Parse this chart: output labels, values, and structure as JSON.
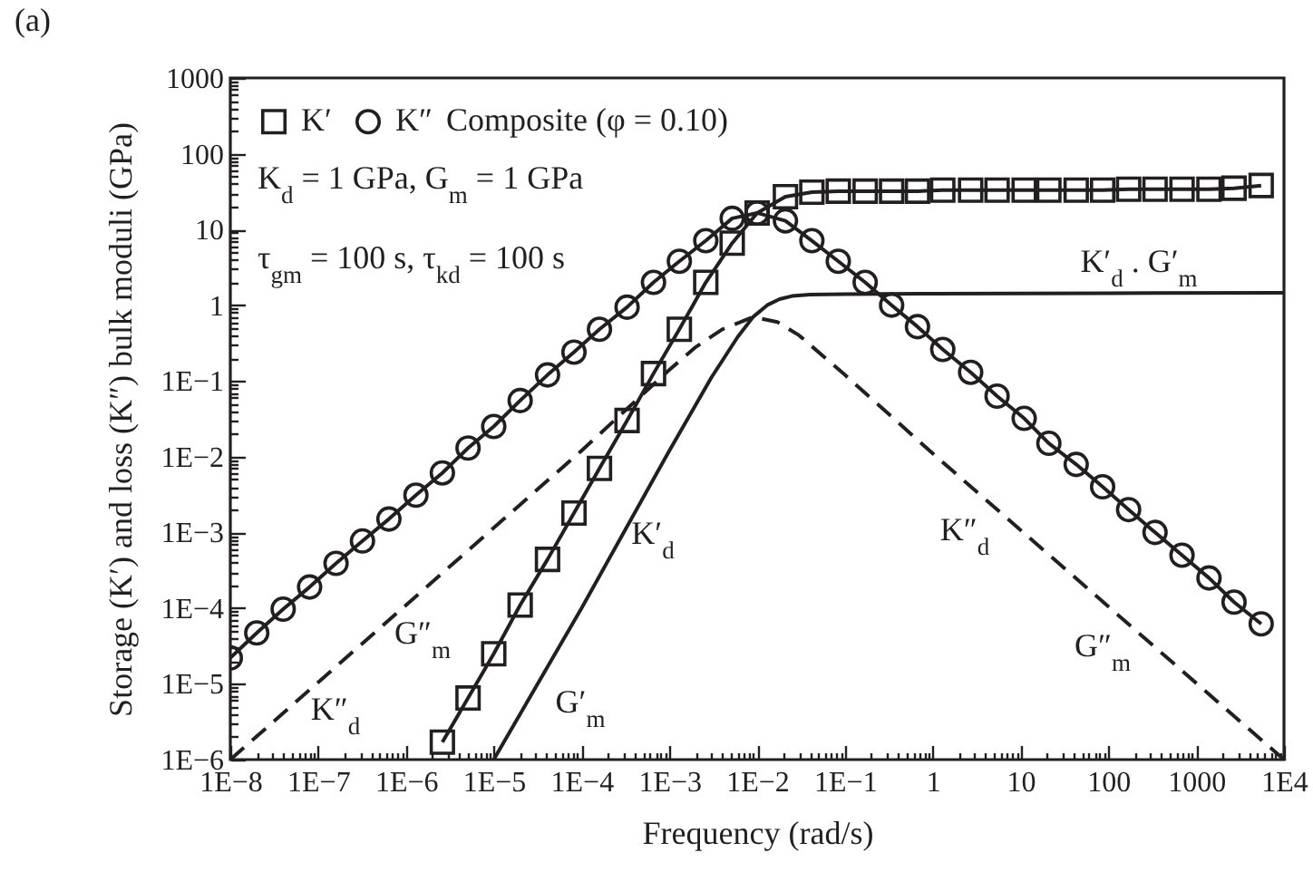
{
  "chart_data": {
    "type": "line",
    "title": "(a)",
    "xlabel": "Frequency (rad/s)",
    "ylabel": "Storage (K′) and loss (K″) bulk moduli (GPa)",
    "legend_title": "Composite (φ = 0.10)",
    "legend": "top left",
    "log": "xy",
    "xlim": [
      1e-08,
      10000
    ],
    "ylim": [
      1e-06,
      1000
    ],
    "xticks": [
      {
        "value": 1e-08,
        "label": "1E−8"
      },
      {
        "value": 2e-08,
        "label": null
      },
      {
        "value": 3e-08,
        "label": null
      },
      {
        "value": 4e-08,
        "label": null
      },
      {
        "value": 5e-08,
        "label": null
      },
      {
        "value": 6e-08,
        "label": null
      },
      {
        "value": 7e-08,
        "label": null
      },
      {
        "value": 8e-08,
        "label": null
      },
      {
        "value": 9e-08,
        "label": null
      },
      {
        "value": 1e-07,
        "label": "1E−7"
      },
      {
        "value": 2e-07,
        "label": null
      },
      {
        "value": 3e-07,
        "label": null
      },
      {
        "value": 4e-07,
        "label": null
      },
      {
        "value": 5e-07,
        "label": null
      },
      {
        "value": 6e-07,
        "label": null
      },
      {
        "value": 7e-07,
        "label": null
      },
      {
        "value": 8e-07,
        "label": null
      },
      {
        "value": 9e-07,
        "label": null
      },
      {
        "value": 1e-06,
        "label": "1E−6"
      },
      {
        "value": 2e-06,
        "label": null
      },
      {
        "value": 3e-06,
        "label": null
      },
      {
        "value": 4e-06,
        "label": null
      },
      {
        "value": 5e-06,
        "label": null
      },
      {
        "value": 6e-06,
        "label": null
      },
      {
        "value": 7e-06,
        "label": null
      },
      {
        "value": 8e-06,
        "label": null
      },
      {
        "value": 9e-06,
        "label": null
      },
      {
        "value": 1e-05,
        "label": "1E−5"
      },
      {
        "value": 2e-05,
        "label": null
      },
      {
        "value": 3e-05,
        "label": null
      },
      {
        "value": 4e-05,
        "label": null
      },
      {
        "value": 5e-05,
        "label": null
      },
      {
        "value": 6e-05,
        "label": null
      },
      {
        "value": 7e-05,
        "label": null
      },
      {
        "value": 8e-05,
        "label": null
      },
      {
        "value": 9e-05,
        "label": null
      },
      {
        "value": 0.0001,
        "label": "1E−4"
      },
      {
        "value": 0.0002,
        "label": null
      },
      {
        "value": 0.0003,
        "label": null
      },
      {
        "value": 0.0004,
        "label": null
      },
      {
        "value": 0.0005,
        "label": null
      },
      {
        "value": 0.0006,
        "label": null
      },
      {
        "value": 0.0007,
        "label": null
      },
      {
        "value": 0.0008,
        "label": null
      },
      {
        "value": 0.0009,
        "label": null
      },
      {
        "value": 0.001,
        "label": "1E−3"
      },
      {
        "value": 0.002,
        "label": null
      },
      {
        "value": 0.003,
        "label": null
      },
      {
        "value": 0.004,
        "label": null
      },
      {
        "value": 0.005,
        "label": null
      },
      {
        "value": 0.006,
        "label": null
      },
      {
        "value": 0.007,
        "label": null
      },
      {
        "value": 0.008,
        "label": null
      },
      {
        "value": 0.009,
        "label": null
      },
      {
        "value": 0.01,
        "label": "1E−2"
      },
      {
        "value": 0.02,
        "label": null
      },
      {
        "value": 0.03,
        "label": null
      },
      {
        "value": 0.04,
        "label": null
      },
      {
        "value": 0.05,
        "label": null
      },
      {
        "value": 0.06,
        "label": null
      },
      {
        "value": 0.07,
        "label": null
      },
      {
        "value": 0.08,
        "label": null
      },
      {
        "value": 0.09,
        "label": null
      },
      {
        "value": 0.1,
        "label": "1E−1"
      },
      {
        "value": 0.2,
        "label": null
      },
      {
        "value": 0.3,
        "label": null
      },
      {
        "value": 0.4,
        "label": null
      },
      {
        "value": 0.5,
        "label": null
      },
      {
        "value": 0.6,
        "label": null
      },
      {
        "value": 0.7,
        "label": null
      },
      {
        "value": 0.8,
        "label": null
      },
      {
        "value": 0.9,
        "label": null
      },
      1,
      {
        "value": 2,
        "label": null
      },
      {
        "value": 3,
        "label": null
      },
      {
        "value": 4,
        "label": null
      },
      {
        "value": 5,
        "label": null
      },
      {
        "value": 6,
        "label": null
      },
      {
        "value": 7,
        "label": null
      },
      {
        "value": 8,
        "label": null
      },
      {
        "value": 9,
        "label": null
      },
      10,
      {
        "value": 20,
        "label": null
      },
      {
        "value": 30,
        "label": null
      },
      {
        "value": 40,
        "label": null
      },
      {
        "value": 50,
        "label": null
      },
      {
        "value": 60,
        "label": null
      },
      {
        "value": 70,
        "label": null
      },
      {
        "value": 80,
        "label": null
      },
      {
        "value": 90,
        "label": null
      },
      100,
      {
        "value": 200,
        "label": null
      },
      {
        "value": 300,
        "label": null
      },
      {
        "value": 400,
        "label": null
      },
      {
        "value": 500,
        "label": null
      },
      {
        "value": 600,
        "label": null
      },
      {
        "value": 700,
        "label": null
      },
      {
        "value": 800,
        "label": null
      },
      {
        "value": 900,
        "label": null
      },
      1000,
      {
        "value": 2000,
        "label": null
      },
      {
        "value": 3000,
        "label": null
      },
      {
        "value": 4000,
        "label": null
      },
      {
        "value": 5000,
        "label": null
      },
      {
        "value": 6000,
        "label": null
      },
      {
        "value": 7000,
        "label": null
      },
      {
        "value": 8000,
        "label": null
      },
      {
        "value": 9000,
        "label": null
      },
      {
        "value": 10000,
        "label": "1E4"
      }
    ],
    "yticks": [
      {
        "value": 1e-06,
        "label": "1E−6"
      },
      {
        "value": 2e-06,
        "label": null
      },
      {
        "value": 3e-06,
        "label": null
      },
      {
        "value": 4e-06,
        "label": null
      },
      {
        "value": 5e-06,
        "label": null
      },
      {
        "value": 6e-06,
        "label": null
      },
      {
        "value": 7e-06,
        "label": null
      },
      {
        "value": 8e-06,
        "label": null
      },
      {
        "value": 9e-06,
        "label": null
      },
      {
        "value": 1e-05,
        "label": "1E−5"
      },
      {
        "value": 2e-05,
        "label": null
      },
      {
        "value": 3e-05,
        "label": null
      },
      {
        "value": 4e-05,
        "label": null
      },
      {
        "value": 5e-05,
        "label": null
      },
      {
        "value": 6e-05,
        "label": null
      },
      {
        "value": 7e-05,
        "label": null
      },
      {
        "value": 8e-05,
        "label": null
      },
      {
        "value": 9e-05,
        "label": null
      },
      {
        "value": 0.0001,
        "label": "1E−4"
      },
      {
        "value": 0.0002,
        "label": null
      },
      {
        "value": 0.0003,
        "label": null
      },
      {
        "value": 0.0004,
        "label": null
      },
      {
        "value": 0.0005,
        "label": null
      },
      {
        "value": 0.0006,
        "label": null
      },
      {
        "value": 0.0007,
        "label": null
      },
      {
        "value": 0.0008,
        "label": null
      },
      {
        "value": 0.0009,
        "label": null
      },
      {
        "value": 0.001,
        "label": "1E−3"
      },
      {
        "value": 0.002,
        "label": null
      },
      {
        "value": 0.003,
        "label": null
      },
      {
        "value": 0.004,
        "label": null
      },
      {
        "value": 0.005,
        "label": null
      },
      {
        "value": 0.006,
        "label": null
      },
      {
        "value": 0.007,
        "label": null
      },
      {
        "value": 0.008,
        "label": null
      },
      {
        "value": 0.009,
        "label": null
      },
      {
        "value": 0.01,
        "label": "1E−2"
      },
      {
        "value": 0.02,
        "label": null
      },
      {
        "value": 0.03,
        "label": null
      },
      {
        "value": 0.04,
        "label": null
      },
      {
        "value": 0.05,
        "label": null
      },
      {
        "value": 0.06,
        "label": null
      },
      {
        "value": 0.07,
        "label": null
      },
      {
        "value": 0.08,
        "label": null
      },
      {
        "value": 0.09,
        "label": null
      },
      {
        "value": 0.1,
        "label": "1E−1"
      },
      {
        "value": 0.2,
        "label": null
      },
      {
        "value": 0.3,
        "label": null
      },
      {
        "value": 0.4,
        "label": null
      },
      {
        "value": 0.5,
        "label": null
      },
      {
        "value": 0.6,
        "label": null
      },
      {
        "value": 0.7,
        "label": null
      },
      {
        "value": 0.8,
        "label": null
      },
      {
        "value": 0.9,
        "label": null
      },
      1,
      {
        "value": 2,
        "label": null
      },
      {
        "value": 3,
        "label": null
      },
      {
        "value": 4,
        "label": null
      },
      {
        "value": 5,
        "label": null
      },
      {
        "value": 6,
        "label": null
      },
      {
        "value": 7,
        "label": null
      },
      {
        "value": 8,
        "label": null
      },
      {
        "value": 9,
        "label": null
      },
      10,
      {
        "value": 20,
        "label": null
      },
      {
        "value": 30,
        "label": null
      },
      {
        "value": 40,
        "label": null
      },
      {
        "value": 50,
        "label": null
      },
      {
        "value": 60,
        "label": null
      },
      {
        "value": 70,
        "label": null
      },
      {
        "value": 80,
        "label": null
      },
      {
        "value": 90,
        "label": null
      },
      100,
      {
        "value": 200,
        "label": null
      },
      {
        "value": 300,
        "label": null
      },
      {
        "value": 400,
        "label": null
      },
      {
        "value": 500,
        "label": null
      },
      {
        "value": 600,
        "label": null
      },
      {
        "value": 700,
        "label": null
      },
      {
        "value": 800,
        "label": null
      },
      {
        "value": 900,
        "label": null
      },
      1000
    ],
    "series": [
      {
        "name": "K′",
        "marker": "square",
        "line_style": "solid",
        "color": "#231f20",
        "x": [
          2.6e-06,
          5.1e-06,
          1e-05,
          2e-05,
          4.1e-05,
          8.2e-05,
          0.00016,
          0.00033,
          0.00066,
          0.0013,
          0.0026,
          0.0052,
          0.01,
          0.021,
          0.042,
          0.084,
          0.17,
          0.34,
          0.67,
          1.3,
          2.7,
          5.4,
          11,
          21,
          43,
          86,
          170,
          340,
          690,
          1400,
          2700,
          5500
        ],
        "values": [
          1.7e-06,
          6.5e-06,
          2.5e-05,
          0.00011,
          0.00044,
          0.0018,
          0.007,
          0.03,
          0.125,
          0.48,
          2,
          6.6,
          16.5,
          27,
          31,
          32,
          32,
          32,
          32,
          33,
          33,
          33,
          33,
          33,
          33,
          33,
          34,
          34,
          34,
          34,
          35,
          38
        ]
      },
      {
        "name": "K″",
        "marker": "circle",
        "line_style": "solid",
        "color": "#231f20",
        "x": [
          1e-08,
          2e-08,
          4e-08,
          8e-08,
          1.6e-07,
          3.2e-07,
          6.4e-07,
          1.3e-06,
          2.6e-06,
          5.1e-06,
          1e-05,
          2e-05,
          4.1e-05,
          8.2e-05,
          0.00016,
          0.00033,
          0.00066,
          0.0013,
          0.0026,
          0.0052,
          0.01,
          0.021,
          0.042,
          0.084,
          0.17,
          0.34,
          0.67,
          1.3,
          2.7,
          5.4,
          11,
          21,
          43,
          86,
          170,
          340,
          690,
          1400,
          2700,
          5500
        ],
        "values": [
          2.2e-05,
          4.7e-05,
          9.7e-05,
          0.00019,
          0.00039,
          0.00077,
          0.0015,
          0.0031,
          0.0061,
          0.013,
          0.025,
          0.055,
          0.12,
          0.24,
          0.48,
          0.94,
          2,
          3.8,
          7.1,
          14,
          16.5,
          13,
          7.1,
          3.8,
          2,
          1,
          0.52,
          0.26,
          0.13,
          0.063,
          0.032,
          0.015,
          0.0079,
          0.004,
          0.002,
          0.001,
          0.0005,
          0.00025,
          0.00012,
          6.2e-05
        ]
      },
      {
        "marker": "none",
        "line_style": "solid",
        "color": "#231f20",
        "x": [
          1e-05,
          0.0001,
          0.001,
          0.003,
          0.006,
          0.009,
          0.013,
          0.018,
          0.025,
          0.04,
          0.1,
          1,
          100,
          10000
        ],
        "values": [
          1e-06,
          0.0001,
          0.012,
          0.11,
          0.38,
          0.7,
          1,
          1.2,
          1.32,
          1.38,
          1.4,
          1.42,
          1.44,
          1.46
        ]
      },
      {
        "marker": "none",
        "line_style": "dashed",
        "color": "#231f20",
        "x": [
          1e-08,
          0.0001,
          0.001,
          0.002,
          0.004,
          0.009,
          0.017,
          0.03,
          0.1,
          1,
          10000
        ],
        "values": [
          1e-06,
          0.012,
          0.14,
          0.28,
          0.48,
          0.7,
          0.6,
          0.4,
          0.12,
          0.011,
          1e-06
        ]
      }
    ],
    "annotations": [
      "K$_{d}$ = 1 GPa, G$_{m}$ = 1 GPa",
      "τ$_{gm}$ = 100 s, τ$_{kd}$ = 100 s",
      "G″$_{m}$",
      "K″$_{d}$",
      "K′$_{d}$",
      "G′$_{m}$",
      "K″$_{d}$",
      "G″$_{m}$",
      "K′$_{d}$ . G′$_{m}$"
    ]
  }
}
